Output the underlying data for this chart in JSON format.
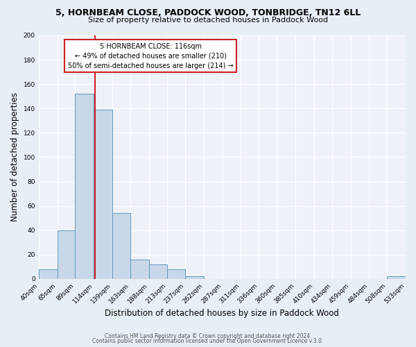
{
  "title1": "5, HORNBEAM CLOSE, PADDOCK WOOD, TONBRIDGE, TN12 6LL",
  "title2": "Size of property relative to detached houses in Paddock Wood",
  "xlabel": "Distribution of detached houses by size in Paddock Wood",
  "ylabel": "Number of detached properties",
  "bar_edges": [
    40,
    65,
    89,
    114,
    139,
    163,
    188,
    213,
    237,
    262,
    287,
    311,
    336,
    360,
    385,
    410,
    434,
    459,
    484,
    508,
    533
  ],
  "bar_heights": [
    8,
    40,
    152,
    139,
    54,
    16,
    12,
    8,
    2,
    0,
    0,
    0,
    0,
    0,
    0,
    0,
    0,
    0,
    0,
    2
  ],
  "bar_color": "#c8d8e8",
  "bar_edge_color": "#6699bb",
  "vline_x": 116,
  "vline_color": "#cc2222",
  "annotation_line1": "5 HORNBEAM CLOSE: 116sqm",
  "annotation_line2": "← 49% of detached houses are smaller (210)",
  "annotation_line3": "50% of semi-detached houses are larger (214) →",
  "annotation_box_color": "#ffffff",
  "annotation_box_edge": "#cc2222",
  "ylim": [
    0,
    200
  ],
  "yticks": [
    0,
    20,
    40,
    60,
    80,
    100,
    120,
    140,
    160,
    180,
    200
  ],
  "tick_labels": [
    "40sqm",
    "65sqm",
    "89sqm",
    "114sqm",
    "139sqm",
    "163sqm",
    "188sqm",
    "213sqm",
    "237sqm",
    "262sqm",
    "287sqm",
    "311sqm",
    "336sqm",
    "360sqm",
    "385sqm",
    "410sqm",
    "434sqm",
    "459sqm",
    "484sqm",
    "508sqm",
    "533sqm"
  ],
  "footer1": "Contains HM Land Registry data © Crown copyright and database right 2024.",
  "footer2": "Contains public sector information licensed under the Open Government Licence v.3.0.",
  "bg_color": "#e8eef5",
  "plot_bg_color": "#eef2f8",
  "title1_fontsize": 9.0,
  "title2_fontsize": 8.0,
  "xlabel_fontsize": 8.5,
  "ylabel_fontsize": 8.5,
  "tick_fontsize": 6.5,
  "annot_fontsize": 7.0,
  "footer_fontsize": 5.5
}
